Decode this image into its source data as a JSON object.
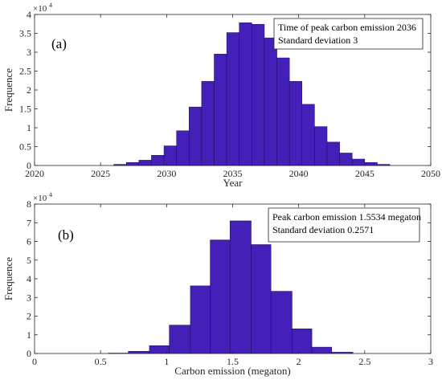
{
  "chart_data": [
    {
      "type": "bar",
      "panel_label": "(a)",
      "xlabel": "Year",
      "ylabel": "Frequence",
      "y_exponent_base": "×10",
      "y_exponent_power": "4",
      "xlim": [
        2020,
        2050
      ],
      "ylim": [
        0,
        4
      ],
      "xticks": [
        2020,
        2025,
        2030,
        2035,
        2040,
        2045,
        2050
      ],
      "yticks": [
        0,
        0.5,
        1,
        1.5,
        2,
        2.5,
        3,
        3.5,
        4
      ],
      "ytick_labels": [
        "0",
        "0.5",
        "1",
        "1.5",
        "2",
        "2.5",
        "3",
        "3.5",
        "4"
      ],
      "bar_color": "#4420b8",
      "bin_edges": [
        2026.0,
        2026.95,
        2027.9,
        2028.85,
        2029.8,
        2030.75,
        2031.7,
        2032.65,
        2033.6,
        2034.55,
        2035.5,
        2036.45,
        2037.4,
        2038.35,
        2039.3,
        2040.25,
        2041.2,
        2042.15,
        2043.1,
        2044.05,
        2045.0,
        2045.95,
        2046.9
      ],
      "values": [
        0.03,
        0.08,
        0.14,
        0.27,
        0.52,
        0.92,
        1.55,
        2.23,
        2.95,
        3.52,
        3.78,
        3.74,
        3.38,
        2.85,
        2.23,
        1.62,
        1.03,
        0.62,
        0.33,
        0.17,
        0.08,
        0.03
      ],
      "annotation": [
        "Time of peak carbon emission 2036",
        "Standard deviation 3"
      ]
    },
    {
      "type": "bar",
      "panel_label": "(b)",
      "xlabel": "Carbon emission (megaton)",
      "ylabel": "Frequence",
      "y_exponent_base": "×10",
      "y_exponent_power": "4",
      "xlim": [
        0,
        3
      ],
      "ylim": [
        0,
        8
      ],
      "xticks": [
        0,
        0.5,
        1,
        1.5,
        2,
        2.5,
        3
      ],
      "xtick_labels": [
        "0",
        "0.5",
        "1",
        "1.5",
        "2",
        "2.5",
        "3"
      ],
      "yticks": [
        0,
        1,
        2,
        3,
        4,
        5,
        6,
        7,
        8
      ],
      "ytick_labels": [
        "0",
        "1",
        "2",
        "3",
        "4",
        "5",
        "6",
        "7",
        "8"
      ],
      "bar_color": "#4420b8",
      "bin_edges": [
        0.56,
        0.71,
        0.87,
        1.02,
        1.18,
        1.33,
        1.48,
        1.64,
        1.79,
        1.95,
        2.1,
        2.25,
        2.41
      ],
      "values": [
        0.02,
        0.12,
        0.42,
        1.52,
        3.62,
        6.08,
        7.1,
        5.83,
        3.33,
        1.32,
        0.34,
        0.07
      ],
      "annotation": [
        "Peak carbon emission 1.5534 megaton",
        "Standard deviation 0.2571"
      ]
    }
  ]
}
